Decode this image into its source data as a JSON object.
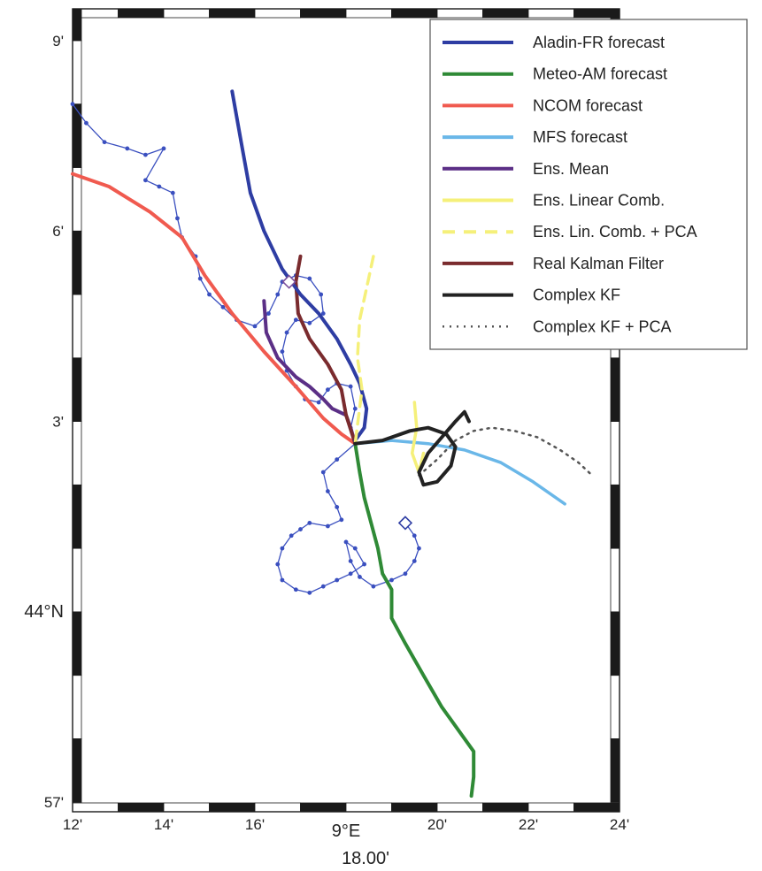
{
  "map": {
    "lon_ticks": [
      {
        "lon": 12,
        "label": "12'"
      },
      {
        "lon": 14,
        "label": "14'"
      },
      {
        "lon": 16,
        "label": "16'"
      },
      {
        "lon": 18,
        "label": "9°E"
      },
      {
        "lon": 20,
        "label": "20'"
      },
      {
        "lon": 22,
        "label": "22'"
      },
      {
        "lon": 24,
        "label": "24'"
      }
    ],
    "lat_ticks": [
      {
        "lat": 9,
        "label": "9'"
      },
      {
        "lat": 6,
        "label": "6'"
      },
      {
        "lat": 3,
        "label": "3'"
      },
      {
        "lat": 0,
        "label": "44°N"
      },
      {
        "lat": -3,
        "label": "57'"
      }
    ],
    "lon_center_label": "18.00'",
    "lon_range": [
      12,
      24
    ],
    "lat_range": [
      -3.15,
      9.5
    ]
  },
  "legend": {
    "position": "top-right",
    "items": [
      {
        "label": "Aladin-FR forecast",
        "color": "#2e3da3",
        "style": "solid"
      },
      {
        "label": "Meteo-AM forecast",
        "color": "#2f8a36",
        "style": "solid"
      },
      {
        "label": "NCOM forecast",
        "color": "#f05a4f",
        "style": "solid"
      },
      {
        "label": "MFS forecast",
        "color": "#6ab7e8",
        "style": "solid"
      },
      {
        "label": "Ens. Mean",
        "color": "#5b2f86",
        "style": "solid"
      },
      {
        "label": "Ens. Linear Comb.",
        "color": "#f5f07a",
        "style": "solid"
      },
      {
        "label": "Ens. Lin. Comb. + PCA",
        "color": "#f5f07a",
        "style": "dashed"
      },
      {
        "label": "Real Kalman Filter",
        "color": "#7a2b2e",
        "style": "solid"
      },
      {
        "label": "Complex KF",
        "color": "#222222",
        "style": "solid"
      },
      {
        "label": "Complex KF + PCA",
        "color": "#555555",
        "style": "dotted"
      }
    ]
  },
  "tracks": {
    "aladin": [
      [
        15.5,
        8.2
      ],
      [
        15.7,
        7.4
      ],
      [
        15.9,
        6.6
      ],
      [
        16.2,
        6.0
      ],
      [
        16.6,
        5.4
      ],
      [
        17.0,
        5.0
      ],
      [
        17.4,
        4.7
      ],
      [
        17.8,
        4.3
      ],
      [
        18.1,
        3.9
      ],
      [
        18.3,
        3.6
      ],
      [
        18.45,
        3.2
      ],
      [
        18.4,
        2.9
      ],
      [
        18.2,
        2.7
      ]
    ],
    "meteo": [
      [
        18.2,
        2.65
      ],
      [
        18.3,
        2.2
      ],
      [
        18.4,
        1.8
      ],
      [
        18.55,
        1.4
      ],
      [
        18.7,
        1.0
      ],
      [
        18.8,
        0.6
      ],
      [
        19.0,
        0.35
      ],
      [
        19.0,
        -0.1
      ],
      [
        19.3,
        -0.5
      ],
      [
        19.7,
        -1.0
      ],
      [
        20.1,
        -1.5
      ],
      [
        20.5,
        -1.9
      ],
      [
        20.8,
        -2.2
      ],
      [
        20.8,
        -2.6
      ],
      [
        20.75,
        -2.9
      ]
    ],
    "ncom": [
      [
        12.0,
        6.9
      ],
      [
        12.8,
        6.7
      ],
      [
        13.7,
        6.3
      ],
      [
        14.4,
        5.9
      ],
      [
        14.9,
        5.3
      ],
      [
        15.5,
        4.7
      ],
      [
        16.2,
        4.1
      ],
      [
        16.9,
        3.55
      ],
      [
        17.5,
        3.05
      ],
      [
        17.9,
        2.8
      ],
      [
        18.2,
        2.65
      ]
    ],
    "mfs": [
      [
        18.2,
        2.65
      ],
      [
        19.0,
        2.7
      ],
      [
        19.8,
        2.65
      ],
      [
        20.6,
        2.55
      ],
      [
        21.4,
        2.35
      ],
      [
        22.1,
        2.05
      ],
      [
        22.8,
        1.7
      ]
    ],
    "ens_mean": [
      [
        16.2,
        4.9
      ],
      [
        16.25,
        4.4
      ],
      [
        16.5,
        4.0
      ],
      [
        16.9,
        3.7
      ],
      [
        17.2,
        3.55
      ],
      [
        17.5,
        3.35
      ],
      [
        17.7,
        3.2
      ],
      [
        18.0,
        3.1
      ],
      [
        18.1,
        2.9
      ],
      [
        18.2,
        2.65
      ]
    ],
    "ens_lin": [
      [
        19.5,
        3.3
      ],
      [
        19.55,
        2.9
      ],
      [
        19.45,
        2.5
      ],
      [
        19.6,
        2.2
      ],
      [
        19.7,
        2.5
      ]
    ],
    "ens_lin_pca": [
      [
        18.6,
        5.6
      ],
      [
        18.45,
        5.1
      ],
      [
        18.3,
        4.6
      ],
      [
        18.25,
        4.0
      ],
      [
        18.35,
        3.5
      ],
      [
        18.2,
        2.65
      ]
    ],
    "real_kf": [
      [
        17.0,
        5.6
      ],
      [
        16.9,
        5.2
      ],
      [
        16.95,
        4.7
      ],
      [
        17.2,
        4.3
      ],
      [
        17.6,
        3.9
      ],
      [
        17.9,
        3.5
      ],
      [
        18.0,
        3.1
      ],
      [
        18.2,
        2.65
      ]
    ],
    "complex_kf": [
      [
        18.2,
        2.65
      ],
      [
        18.8,
        2.7
      ],
      [
        19.4,
        2.85
      ],
      [
        19.8,
        2.9
      ],
      [
        20.2,
        2.8
      ],
      [
        20.4,
        2.6
      ],
      [
        20.3,
        2.3
      ],
      [
        20.0,
        2.05
      ],
      [
        19.7,
        2.0
      ],
      [
        19.6,
        2.2
      ],
      [
        19.8,
        2.5
      ],
      [
        20.1,
        2.75
      ],
      [
        20.4,
        3.0
      ],
      [
        20.6,
        3.15
      ],
      [
        20.7,
        3.0
      ]
    ],
    "complex_kf_pca": [
      [
        19.6,
        2.15
      ],
      [
        20.0,
        2.4
      ],
      [
        20.4,
        2.7
      ],
      [
        20.8,
        2.85
      ],
      [
        21.2,
        2.9
      ],
      [
        21.7,
        2.85
      ],
      [
        22.2,
        2.75
      ],
      [
        22.7,
        2.55
      ],
      [
        23.1,
        2.35
      ],
      [
        23.4,
        2.15
      ]
    ],
    "obs_north": [
      [
        12.0,
        8.0
      ],
      [
        12.3,
        7.7
      ],
      [
        12.7,
        7.4
      ],
      [
        13.2,
        7.3
      ],
      [
        13.6,
        7.2
      ],
      [
        14.0,
        7.3
      ],
      [
        13.6,
        6.8
      ],
      [
        13.9,
        6.7
      ],
      [
        14.2,
        6.6
      ],
      [
        14.3,
        6.2
      ],
      [
        14.4,
        5.9
      ],
      [
        14.7,
        5.6
      ],
      [
        14.8,
        5.25
      ],
      [
        15.0,
        5.0
      ],
      [
        15.3,
        4.8
      ],
      [
        15.6,
        4.6
      ],
      [
        16.0,
        4.5
      ],
      [
        16.3,
        4.7
      ],
      [
        16.5,
        5.0
      ],
      [
        16.6,
        5.2
      ],
      [
        16.9,
        5.3
      ],
      [
        17.2,
        5.25
      ],
      [
        17.45,
        5.0
      ],
      [
        17.5,
        4.7
      ],
      [
        17.2,
        4.55
      ],
      [
        16.9,
        4.6
      ],
      [
        16.7,
        4.4
      ],
      [
        16.6,
        4.1
      ],
      [
        16.7,
        3.8
      ],
      [
        16.9,
        3.55
      ],
      [
        17.1,
        3.35
      ],
      [
        17.4,
        3.3
      ],
      [
        17.6,
        3.5
      ],
      [
        17.8,
        3.6
      ],
      [
        18.1,
        3.55
      ],
      [
        18.2,
        3.2
      ],
      [
        18.1,
        2.9
      ],
      [
        18.2,
        2.65
      ]
    ],
    "obs_south": [
      [
        18.2,
        2.65
      ],
      [
        17.8,
        2.4
      ],
      [
        17.5,
        2.2
      ],
      [
        17.6,
        1.9
      ],
      [
        17.8,
        1.65
      ],
      [
        17.9,
        1.45
      ],
      [
        17.6,
        1.35
      ],
      [
        17.2,
        1.4
      ],
      [
        17.0,
        1.3
      ],
      [
        16.8,
        1.2
      ],
      [
        16.6,
        1.0
      ],
      [
        16.5,
        0.75
      ],
      [
        16.6,
        0.5
      ],
      [
        16.9,
        0.35
      ],
      [
        17.2,
        0.3
      ],
      [
        17.5,
        0.4
      ],
      [
        17.8,
        0.5
      ],
      [
        18.1,
        0.6
      ],
      [
        18.4,
        0.75
      ],
      [
        18.2,
        1.0
      ],
      [
        18.0,
        1.1
      ],
      [
        18.1,
        0.8
      ],
      [
        18.3,
        0.55
      ],
      [
        18.6,
        0.4
      ],
      [
        19.0,
        0.5
      ],
      [
        19.3,
        0.6
      ],
      [
        19.5,
        0.8
      ],
      [
        19.6,
        1.0
      ],
      [
        19.5,
        1.2
      ],
      [
        19.3,
        1.4
      ]
    ]
  },
  "markers": [
    {
      "lon": 16.75,
      "lat": 5.2,
      "color": "#7a4f9c"
    },
    {
      "lon": 19.3,
      "lat": 1.4,
      "color": "#2e3da3"
    }
  ]
}
